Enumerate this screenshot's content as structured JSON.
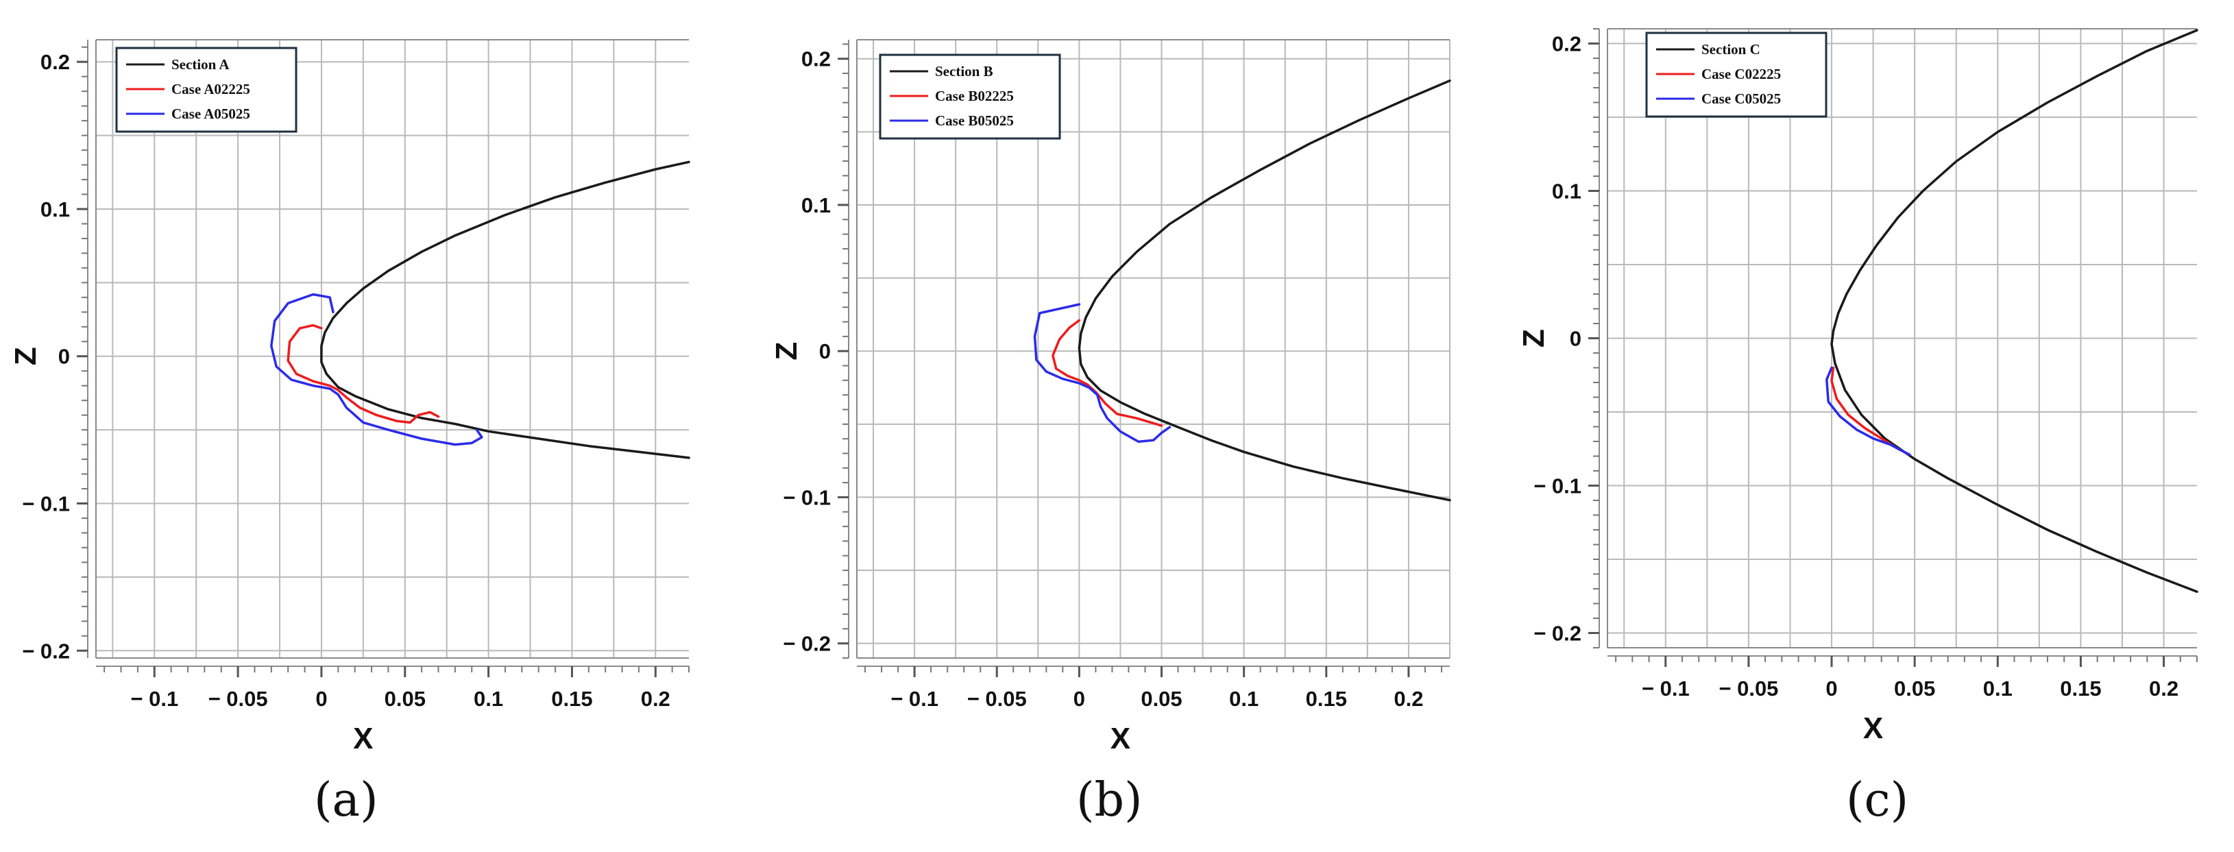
{
  "colors": {
    "section": "#1a1a1a",
    "case02225": "#ee1c1c",
    "case05025": "#2b2bea"
  },
  "chart_data": [
    {
      "type": "line",
      "panel_label": "(a)",
      "xlabel": "X",
      "ylabel": "Z",
      "xlim": [
        -0.135,
        0.22
      ],
      "ylim": [
        -0.205,
        0.215
      ],
      "xticks": [
        -0.1,
        -0.05,
        0,
        0.05,
        0.1,
        0.15,
        0.2
      ],
      "xtick_labels": [
        "− 0.1",
        "− 0.05",
        "0",
        "0.05",
        "0.1",
        "0.15",
        "0.2"
      ],
      "yticks": [
        -0.2,
        -0.1,
        0,
        0.1,
        0.2
      ],
      "ytick_labels": [
        "− 0.2",
        "− 0.1",
        "0",
        "0.1",
        "0.2"
      ],
      "grid": true,
      "legend_position": "top-left",
      "series": [
        {
          "name": "Section A",
          "color": "#1a1a1a",
          "points": [
            [
              0.22,
              0.132
            ],
            [
              0.2,
              0.127
            ],
            [
              0.17,
              0.118
            ],
            [
              0.14,
              0.108
            ],
            [
              0.11,
              0.096
            ],
            [
              0.08,
              0.082
            ],
            [
              0.06,
              0.071
            ],
            [
              0.04,
              0.058
            ],
            [
              0.025,
              0.046
            ],
            [
              0.015,
              0.036
            ],
            [
              0.007,
              0.026
            ],
            [
              0.002,
              0.016
            ],
            [
              0.0,
              0.007
            ],
            [
              0.0,
              -0.004
            ],
            [
              0.003,
              -0.012
            ],
            [
              0.01,
              -0.021
            ],
            [
              0.02,
              -0.027
            ],
            [
              0.04,
              -0.036
            ],
            [
              0.06,
              -0.042
            ],
            [
              0.08,
              -0.046
            ],
            [
              0.1,
              -0.051
            ],
            [
              0.13,
              -0.056
            ],
            [
              0.16,
              -0.061
            ],
            [
              0.19,
              -0.065
            ],
            [
              0.22,
              -0.069
            ]
          ]
        },
        {
          "name": "Case A02225",
          "color": "#ee1c1c",
          "points": [
            [
              0.0,
              0.019
            ],
            [
              -0.005,
              0.021
            ],
            [
              -0.013,
              0.019
            ],
            [
              -0.019,
              0.01
            ],
            [
              -0.02,
              -0.003
            ],
            [
              -0.015,
              -0.012
            ],
            [
              -0.005,
              -0.017
            ],
            [
              0.005,
              -0.02
            ],
            [
              0.01,
              -0.023
            ],
            [
              0.015,
              -0.028
            ],
            [
              0.023,
              -0.035
            ],
            [
              0.033,
              -0.04
            ],
            [
              0.045,
              -0.044
            ],
            [
              0.053,
              -0.045
            ],
            [
              0.058,
              -0.04
            ],
            [
              0.065,
              -0.038
            ],
            [
              0.07,
              -0.041
            ]
          ]
        },
        {
          "name": "Case A05025",
          "color": "#2b2bea",
          "points": [
            [
              0.007,
              0.03
            ],
            [
              0.005,
              0.04
            ],
            [
              -0.005,
              0.042
            ],
            [
              -0.02,
              0.036
            ],
            [
              -0.028,
              0.024
            ],
            [
              -0.03,
              0.007
            ],
            [
              -0.027,
              -0.007
            ],
            [
              -0.018,
              -0.016
            ],
            [
              -0.005,
              -0.02
            ],
            [
              0.005,
              -0.022
            ],
            [
              0.01,
              -0.026
            ],
            [
              0.015,
              -0.035
            ],
            [
              0.025,
              -0.045
            ],
            [
              0.04,
              -0.05
            ],
            [
              0.06,
              -0.056
            ],
            [
              0.08,
              -0.06
            ],
            [
              0.09,
              -0.059
            ],
            [
              0.096,
              -0.055
            ],
            [
              0.093,
              -0.05
            ]
          ]
        }
      ]
    },
    {
      "type": "line",
      "panel_label": "(b)",
      "xlabel": "X",
      "ylabel": "Z",
      "xlim": [
        -0.135,
        0.225
      ],
      "ylim": [
        -0.21,
        0.213
      ],
      "xticks": [
        -0.1,
        -0.05,
        0,
        0.05,
        0.1,
        0.15,
        0.2
      ],
      "xtick_labels": [
        "− 0.1",
        "− 0.05",
        "0",
        "0.05",
        "0.1",
        "0.15",
        "0.2"
      ],
      "yticks": [
        -0.2,
        -0.1,
        0,
        0.1,
        0.2
      ],
      "ytick_labels": [
        "− 0.2",
        "− 0.1",
        "0",
        "0.1",
        "0.2"
      ],
      "grid": true,
      "legend_position": "top-left",
      "series": [
        {
          "name": "Section B",
          "color": "#1a1a1a",
          "points": [
            [
              0.225,
              0.185
            ],
            [
              0.2,
              0.173
            ],
            [
              0.17,
              0.158
            ],
            [
              0.14,
              0.142
            ],
            [
              0.11,
              0.124
            ],
            [
              0.08,
              0.105
            ],
            [
              0.055,
              0.087
            ],
            [
              0.035,
              0.068
            ],
            [
              0.02,
              0.051
            ],
            [
              0.01,
              0.036
            ],
            [
              0.004,
              0.023
            ],
            [
              0.001,
              0.012
            ],
            [
              0.0,
              0.002
            ],
            [
              0.001,
              -0.009
            ],
            [
              0.005,
              -0.018
            ],
            [
              0.013,
              -0.027
            ],
            [
              0.025,
              -0.035
            ],
            [
              0.04,
              -0.043
            ],
            [
              0.06,
              -0.052
            ],
            [
              0.08,
              -0.061
            ],
            [
              0.1,
              -0.069
            ],
            [
              0.13,
              -0.079
            ],
            [
              0.16,
              -0.087
            ],
            [
              0.19,
              -0.094
            ],
            [
              0.225,
              -0.102
            ]
          ]
        },
        {
          "name": "Case B02225",
          "color": "#ee1c1c",
          "points": [
            [
              0.0,
              0.021
            ],
            [
              -0.006,
              0.016
            ],
            [
              -0.012,
              0.008
            ],
            [
              -0.016,
              -0.003
            ],
            [
              -0.014,
              -0.012
            ],
            [
              -0.007,
              -0.017
            ],
            [
              0.0,
              -0.02
            ],
            [
              0.005,
              -0.023
            ],
            [
              0.01,
              -0.028
            ],
            [
              0.016,
              -0.036
            ],
            [
              0.023,
              -0.043
            ],
            [
              0.035,
              -0.046
            ],
            [
              0.05,
              -0.051
            ]
          ]
        },
        {
          "name": "Case B05025",
          "color": "#2b2bea",
          "points": [
            [
              0.0,
              0.032
            ],
            [
              -0.012,
              0.029
            ],
            [
              -0.024,
              0.026
            ],
            [
              -0.027,
              0.01
            ],
            [
              -0.026,
              -0.006
            ],
            [
              -0.02,
              -0.014
            ],
            [
              -0.01,
              -0.019
            ],
            [
              0.0,
              -0.022
            ],
            [
              0.006,
              -0.025
            ],
            [
              0.011,
              -0.03
            ],
            [
              0.013,
              -0.038
            ],
            [
              0.017,
              -0.046
            ],
            [
              0.025,
              -0.055
            ],
            [
              0.036,
              -0.062
            ],
            [
              0.045,
              -0.061
            ],
            [
              0.05,
              -0.056
            ],
            [
              0.055,
              -0.052
            ]
          ]
        }
      ]
    },
    {
      "type": "line",
      "panel_label": "(c)",
      "xlabel": "X",
      "ylabel": "Z",
      "xlim": [
        -0.135,
        0.22
      ],
      "ylim": [
        -0.21,
        0.21
      ],
      "xticks": [
        -0.1,
        -0.05,
        0,
        0.05,
        0.1,
        0.15,
        0.2
      ],
      "xtick_labels": [
        "− 0.1",
        "− 0.05",
        "0",
        "0.05",
        "0.1",
        "0.15",
        "0.2"
      ],
      "yticks": [
        -0.2,
        -0.1,
        0,
        0.1,
        0.2
      ],
      "ytick_labels": [
        "− 0.2",
        "− 0.1",
        "0",
        "0.1",
        "0.2"
      ],
      "grid": true,
      "legend_position": "top-left",
      "series": [
        {
          "name": "Section C",
          "color": "#1a1a1a",
          "points": [
            [
              0.22,
              0.209
            ],
            [
              0.19,
              0.195
            ],
            [
              0.16,
              0.178
            ],
            [
              0.13,
              0.16
            ],
            [
              0.1,
              0.14
            ],
            [
              0.075,
              0.12
            ],
            [
              0.055,
              0.1
            ],
            [
              0.04,
              0.082
            ],
            [
              0.027,
              0.063
            ],
            [
              0.017,
              0.046
            ],
            [
              0.009,
              0.03
            ],
            [
              0.004,
              0.017
            ],
            [
              0.001,
              0.005
            ],
            [
              0.0,
              -0.004
            ],
            [
              0.002,
              -0.017
            ],
            [
              0.008,
              -0.035
            ],
            [
              0.018,
              -0.052
            ],
            [
              0.032,
              -0.068
            ],
            [
              0.05,
              -0.082
            ],
            [
              0.07,
              -0.095
            ],
            [
              0.1,
              -0.113
            ],
            [
              0.13,
              -0.13
            ],
            [
              0.16,
              -0.145
            ],
            [
              0.19,
              -0.159
            ],
            [
              0.22,
              -0.172
            ]
          ]
        },
        {
          "name": "Case C02225",
          "color": "#ee1c1c",
          "points": [
            [
              0.001,
              -0.02
            ],
            [
              0.0,
              -0.029
            ],
            [
              0.003,
              -0.041
            ],
            [
              0.01,
              -0.052
            ],
            [
              0.02,
              -0.061
            ],
            [
              0.03,
              -0.068
            ],
            [
              0.04,
              -0.075
            ],
            [
              0.047,
              -0.079
            ]
          ]
        },
        {
          "name": "Case C05025",
          "color": "#2b2bea",
          "points": [
            [
              0.0,
              -0.02
            ],
            [
              -0.003,
              -0.028
            ],
            [
              -0.002,
              -0.043
            ],
            [
              0.005,
              -0.053
            ],
            [
              0.015,
              -0.062
            ],
            [
              0.025,
              -0.068
            ],
            [
              0.035,
              -0.072
            ],
            [
              0.047,
              -0.079
            ]
          ]
        }
      ]
    }
  ]
}
